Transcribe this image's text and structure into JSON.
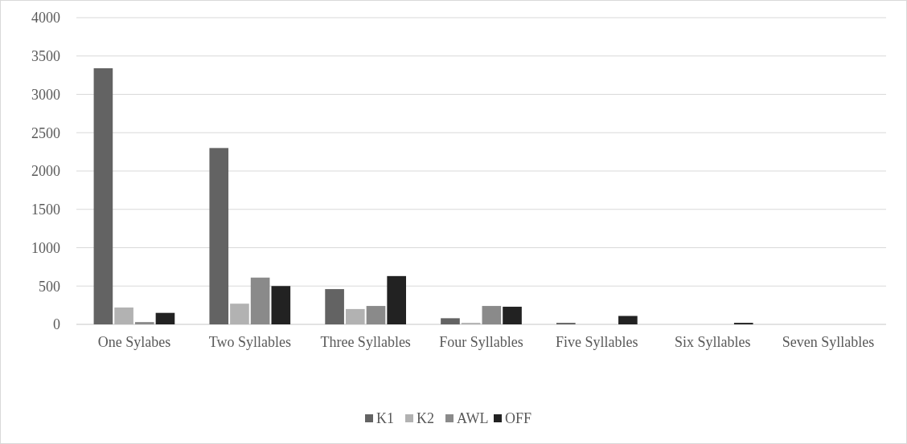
{
  "chart_data": {
    "type": "bar",
    "categories": [
      "One Sylabes",
      "Two Syllables",
      "Three Syllables",
      "Four Syllables",
      "Five Syllables",
      "Six Syllables",
      "Seven Syllables"
    ],
    "series": [
      {
        "name": "K1",
        "color": "#636363",
        "values": [
          3340,
          2300,
          460,
          80,
          20,
          0,
          0
        ]
      },
      {
        "name": "K2",
        "color": "#b2b2b2",
        "values": [
          220,
          270,
          200,
          20,
          0,
          0,
          0
        ]
      },
      {
        "name": "AWL",
        "color": "#8a8a8a",
        "values": [
          30,
          610,
          240,
          240,
          0,
          0,
          0
        ]
      },
      {
        "name": "OFF",
        "color": "#222222",
        "values": [
          150,
          500,
          630,
          230,
          110,
          20,
          0
        ]
      }
    ],
    "ylim": [
      0,
      4000
    ],
    "yticks": [
      0,
      500,
      1000,
      1500,
      2000,
      2500,
      3000,
      3500,
      4000
    ],
    "grid": "y",
    "legend": "bottom"
  }
}
